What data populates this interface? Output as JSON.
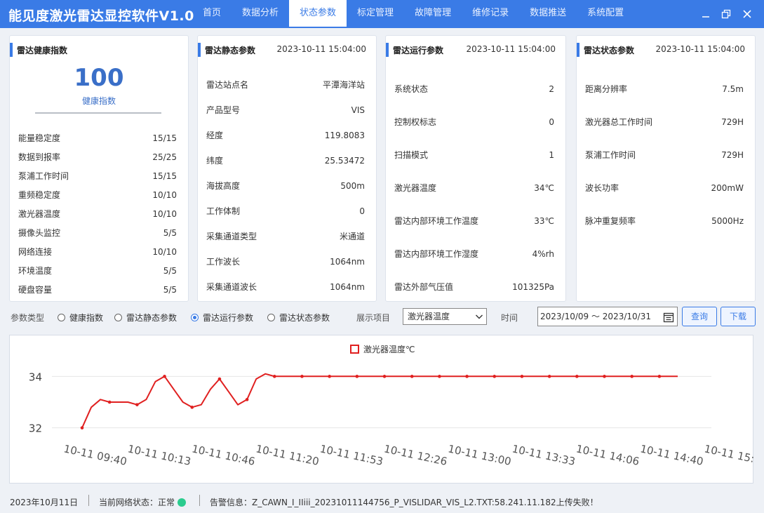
{
  "app": {
    "title": "能见度激光雷达显控软件V1.0"
  },
  "nav": [
    "首页",
    "数据分析",
    "状态参数",
    "标定管理",
    "故障管理",
    "维修记录",
    "数据推送",
    "系统配置"
  ],
  "nav_active": 2,
  "health": {
    "title": "雷达健康指数",
    "score": "100",
    "score_label": "健康指数",
    "items": [
      {
        "k": "能量稳定度",
        "v": "15/15"
      },
      {
        "k": "数据到报率",
        "v": "25/25"
      },
      {
        "k": "泵浦工作时间",
        "v": "15/15"
      },
      {
        "k": "重频稳定度",
        "v": "10/10"
      },
      {
        "k": "激光器温度",
        "v": "10/10"
      },
      {
        "k": "摄像头监控",
        "v": "5/5"
      },
      {
        "k": "网络连接",
        "v": "10/10"
      },
      {
        "k": "环境温度",
        "v": "5/5"
      },
      {
        "k": "硬盘容量",
        "v": "5/5"
      }
    ]
  },
  "static_params": {
    "title": "雷达静态参数",
    "timestamp": "2023-10-11 15:04:00",
    "items": [
      {
        "k": "雷达站点名",
        "v": "平潭海洋站"
      },
      {
        "k": "产品型号",
        "v": "VIS"
      },
      {
        "k": "经度",
        "v": "119.8083"
      },
      {
        "k": "纬度",
        "v": "25.53472"
      },
      {
        "k": "海拔高度",
        "v": "500m"
      },
      {
        "k": "工作体制",
        "v": "0"
      },
      {
        "k": "采集通道类型",
        "v": "米通道"
      },
      {
        "k": "工作波长",
        "v": "1064nm"
      },
      {
        "k": "采集通道波长",
        "v": "1064nm"
      }
    ]
  },
  "run_params": {
    "title": "雷达运行参数",
    "timestamp": "2023-10-11 15:04:00",
    "items": [
      {
        "k": "系统状态",
        "v": "2"
      },
      {
        "k": "控制权标志",
        "v": "0"
      },
      {
        "k": "扫描模式",
        "v": "1"
      },
      {
        "k": "激光器温度",
        "v": "34℃"
      },
      {
        "k": "雷达内部环境工作温度",
        "v": "33℃"
      },
      {
        "k": "雷达内部环境工作湿度",
        "v": "4%rh"
      },
      {
        "k": "雷达外部气压值",
        "v": "101325Pa"
      }
    ]
  },
  "state_params": {
    "title": "雷达状态参数",
    "timestamp": "2023-10-11 15:04:00",
    "items": [
      {
        "k": "距离分辨率",
        "v": "7.5m"
      },
      {
        "k": "激光器总工作时间",
        "v": "729H"
      },
      {
        "k": "泵浦工作时间",
        "v": "729H"
      },
      {
        "k": "波长功率",
        "v": "200mW"
      },
      {
        "k": "脉冲重复频率",
        "v": "5000Hz"
      }
    ]
  },
  "filter": {
    "param_type_label": "参数类型",
    "options": [
      "健康指数",
      "雷达静态参数",
      "雷达运行参数",
      "雷达状态参数"
    ],
    "selected": 2,
    "display_label": "展示项目",
    "display_value": "激光器温度",
    "time_label": "时间",
    "date_range": "2023/10/09  ～  2023/10/31",
    "query_button": "查询",
    "download_button": "下载"
  },
  "chart_data": {
    "type": "line",
    "legend": "激光器温度℃",
    "series": [
      {
        "name": "激光器温度℃",
        "color": "#e02020",
        "values": [
          32,
          32.8,
          33.1,
          33.0,
          33.0,
          33.0,
          32.9,
          33.1,
          33.8,
          34.0,
          33.5,
          33.0,
          32.8,
          32.9,
          33.5,
          33.9,
          33.4,
          32.9,
          33.1,
          33.9,
          34.1,
          34.0,
          34,
          34,
          34,
          34,
          34,
          34,
          34,
          34,
          34,
          34,
          34,
          34,
          34,
          34,
          34,
          34,
          34,
          34,
          34,
          34,
          34,
          34,
          34,
          34,
          34,
          34,
          34,
          34,
          34,
          34,
          34,
          34,
          34,
          34,
          34,
          34,
          34,
          34,
          34,
          34,
          34,
          34,
          34,
          34
        ]
      }
    ],
    "x_tick_labels": [
      "10-11 09:40",
      "10-11 10:13",
      "10-11 10:46",
      "10-11 11:20",
      "10-11 11:53",
      "10-11 12:26",
      "10-11 13:00",
      "10-11 13:33",
      "10-11 14:06",
      "10-11 14:40",
      "10-11 15:"
    ],
    "y_ticks": [
      32,
      34
    ],
    "ylim": [
      31.5,
      34.5
    ]
  },
  "status": {
    "date": "2023年10月11日",
    "network": "当前网络状态：正常",
    "alert": "告警信息：Z_CAWN_I_IIiii_20231011144756_P_VISLIDAR_VIS_L2.TXT:58.241.11.182上传失败！"
  }
}
